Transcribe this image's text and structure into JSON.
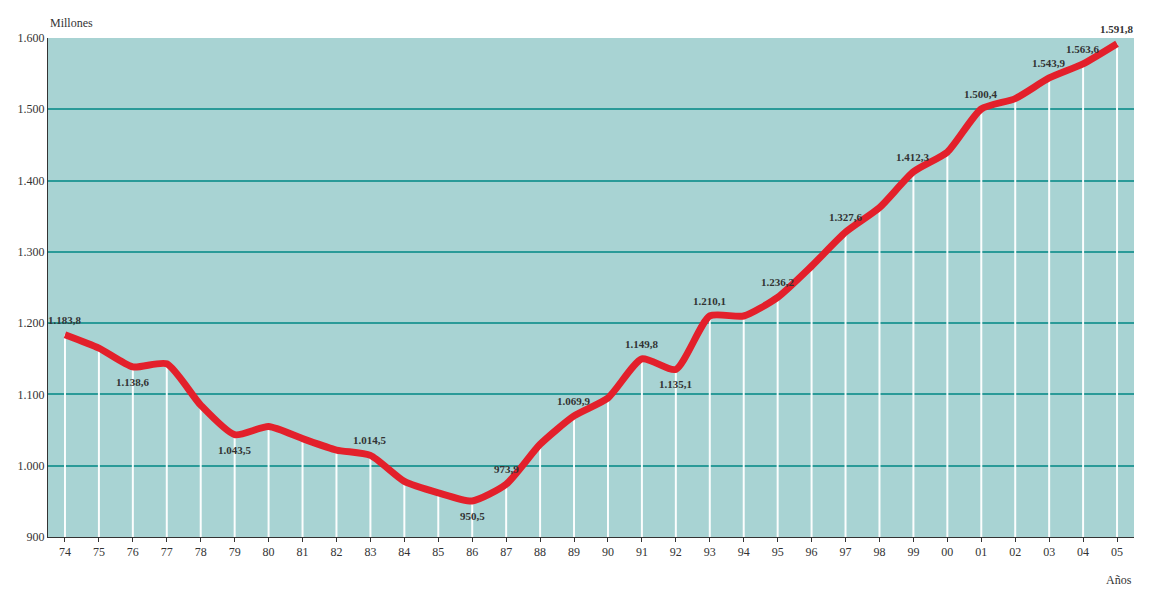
{
  "chart_data": {
    "type": "line",
    "y_label": "Millones",
    "x_label": "Años",
    "categories": [
      "74",
      "75",
      "76",
      "77",
      "78",
      "79",
      "80",
      "81",
      "82",
      "83",
      "84",
      "85",
      "86",
      "87",
      "88",
      "89",
      "90",
      "91",
      "92",
      "93",
      "94",
      "95",
      "96",
      "97",
      "98",
      "99",
      "00",
      "01",
      "02",
      "03",
      "04",
      "05"
    ],
    "values": [
      1183.8,
      1165,
      1138.6,
      1143,
      1085,
      1043.5,
      1055,
      1038,
      1022,
      1014.5,
      978,
      962,
      950.5,
      973.9,
      1030,
      1069.9,
      1095,
      1149.8,
      1135.1,
      1210.1,
      1210,
      1236.2,
      1280,
      1327.6,
      1362,
      1412.3,
      1440,
      1500.4,
      1515,
      1543.9,
      1563.6,
      1591.8
    ],
    "value_labels": [
      "1.183,8",
      null,
      "1.138,6",
      null,
      null,
      "1.043,5",
      null,
      null,
      null,
      "1.014,5",
      null,
      null,
      "950,5",
      "973,9",
      null,
      "1.069,9",
      null,
      "1.149,8",
      "1.135,1",
      "1.210,1",
      null,
      "1.236,2",
      null,
      "1.327,6",
      null,
      "1.412,3",
      null,
      "1.500,4",
      null,
      "1.543,9",
      "1.563,6",
      "1.591,8"
    ],
    "data_labels": true,
    "color": "#e3202b",
    "ylim": [
      900,
      1600
    ],
    "yticks": [
      900,
      {
        "value": 1000,
        "label": "1.000"
      },
      {
        "value": 1100,
        "label": "1.100"
      },
      {
        "value": 1200,
        "label": "1.200"
      },
      {
        "value": 1300,
        "label": "1.300"
      },
      {
        "value": 1400,
        "label": "1.400"
      },
      {
        "value": 1500,
        "label": "1.500"
      },
      {
        "value": 1600,
        "label": "1.600"
      }
    ],
    "grid": true
  }
}
